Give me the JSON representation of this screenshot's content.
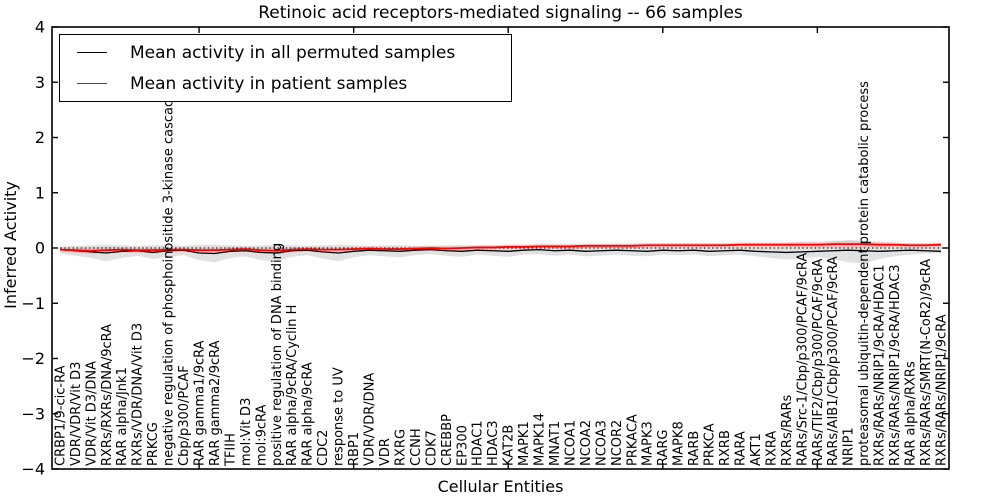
{
  "chart_data": {
    "type": "line",
    "title": "Retinoic acid receptors-mediated signaling -- 66 samples",
    "xlabel": "Cellular Entities",
    "ylabel": "Inferred Activity",
    "ylim": [
      -4,
      4
    ],
    "y_tick_values": [
      4,
      3,
      2,
      1,
      0,
      -1,
      -2,
      -3,
      -4
    ],
    "y_tick_labels": [
      "4",
      "3",
      "2",
      "1",
      "0",
      "−1",
      "−2",
      "−3",
      "−4"
    ],
    "grid": false,
    "zero_line": true,
    "legend_position": "upper left",
    "categories": [
      "CRBP1/9-cic-RA",
      "VDR/VDR/Vit D3",
      "VDR/Vit D3/DNA",
      "RXRs/RXRs/DNA/9cRA",
      "RAR alpha/Jnk1",
      "RXRs/VDR/DNA/Vit D3",
      "PRKCG",
      "negative regulation of phosphoinositide 3-kinase cascade",
      "Cbp/p300/PCAF",
      "RAR gamma1/9cRA",
      "RAR gamma2/9cRA",
      "TFIIH",
      "mol:Vit D3",
      "mol:9cRA",
      "positive regulation of DNA binding",
      "RAR alpha/9cRA/Cyclin H",
      "RAR alpha/9cRA",
      "CDC2",
      "response to UV",
      "RBP1",
      "VDR/VDR/DNA",
      "VDR",
      "RXRG",
      "CCNH",
      "CDK7",
      "CREBBP",
      "EP300",
      "HDAC1",
      "HDAC3",
      "KAT2B",
      "MAPK1",
      "MAPK14",
      "MNAT1",
      "NCOA1",
      "NCOA2",
      "NCOA3",
      "NCOR2",
      "PRKACA",
      "MAPK3",
      "RARG",
      "MAPK8",
      "RARB",
      "PRKCA",
      "RXRB",
      "RARA",
      "AKT1",
      "RXRA",
      "RXRs/RARs",
      "RARs/Src-1/Cbp/p300/PCAF/9cRA",
      "RARs/TIF2/Cbp/p300/PCAF/9cRA",
      "RARs/AIB1/Cbp/p300/PCAF/9cRA",
      "NRIP1",
      "proteasomal ubiquitin-dependent protein catabolic process",
      "RXRs/RARs/NRIP1/9cRA/HDAC1",
      "RXRs/RARs/NRIP1/9cRA/HDAC3",
      "RAR alpha/RXRs",
      "RXRs/RARs/SMRT(N-CoR2)/9cRA",
      "RXRs/RARs/NRIP1/9cRA"
    ],
    "series": [
      {
        "name": "Mean activity in all permuted samples",
        "color": "#000000",
        "band_color": "#d9d9d9",
        "band_opacity": 0.8,
        "values": [
          -0.03,
          -0.05,
          -0.07,
          -0.09,
          -0.06,
          -0.05,
          -0.08,
          -0.05,
          -0.04,
          -0.09,
          -0.1,
          -0.06,
          -0.05,
          -0.08,
          -0.09,
          -0.05,
          -0.04,
          -0.07,
          -0.09,
          -0.06,
          -0.04,
          -0.05,
          -0.06,
          -0.04,
          -0.03,
          -0.05,
          -0.06,
          -0.04,
          -0.05,
          -0.06,
          -0.04,
          -0.03,
          -0.05,
          -0.04,
          -0.06,
          -0.05,
          -0.04,
          -0.05,
          -0.06,
          -0.04,
          -0.05,
          -0.04,
          -0.06,
          -0.05,
          -0.04,
          -0.06,
          -0.07,
          -0.08,
          -0.07,
          -0.06,
          -0.05,
          -0.04,
          -0.05,
          -0.06,
          -0.05,
          -0.04,
          -0.05,
          -0.06
        ],
        "band_high": [
          0.02,
          0.04,
          0.05,
          0.06,
          0.05,
          0.04,
          0.05,
          0.05,
          0.04,
          0.06,
          0.06,
          0.05,
          0.04,
          0.05,
          0.06,
          0.05,
          0.04,
          0.05,
          0.06,
          0.05,
          0.04,
          0.05,
          0.05,
          0.04,
          0.04,
          0.05,
          0.05,
          0.04,
          0.05,
          0.05,
          0.04,
          0.04,
          0.05,
          0.04,
          0.05,
          0.05,
          0.04,
          0.05,
          0.05,
          0.04,
          0.05,
          0.04,
          0.05,
          0.05,
          0.04,
          0.05,
          0.06,
          0.06,
          0.05,
          0.06,
          0.1,
          0.15,
          0.12,
          0.07,
          0.05,
          0.04,
          0.03,
          0.02
        ],
        "band_low": [
          -0.1,
          -0.14,
          -0.18,
          -0.24,
          -0.18,
          -0.14,
          -0.2,
          -0.16,
          -0.13,
          -0.22,
          -0.26,
          -0.18,
          -0.15,
          -0.22,
          -0.24,
          -0.16,
          -0.13,
          -0.19,
          -0.24,
          -0.17,
          -0.13,
          -0.15,
          -0.17,
          -0.13,
          -0.11,
          -0.14,
          -0.16,
          -0.12,
          -0.14,
          -0.16,
          -0.12,
          -0.11,
          -0.14,
          -0.12,
          -0.15,
          -0.14,
          -0.12,
          -0.14,
          -0.15,
          -0.12,
          -0.13,
          -0.12,
          -0.15,
          -0.13,
          -0.12,
          -0.15,
          -0.18,
          -0.21,
          -0.18,
          -0.16,
          -0.2,
          -0.26,
          -0.28,
          -0.2,
          -0.15,
          -0.12,
          -0.1,
          -0.09
        ]
      },
      {
        "name": "Mean activity in patient samples",
        "color": "#ff0000",
        "band_color": "#f4b0b0",
        "band_opacity": 0.65,
        "values": [
          -0.03,
          -0.04,
          -0.05,
          -0.04,
          -0.03,
          -0.04,
          -0.04,
          -0.03,
          -0.03,
          -0.04,
          -0.04,
          -0.03,
          -0.02,
          -0.04,
          -0.05,
          -0.03,
          -0.02,
          -0.03,
          -0.03,
          -0.02,
          -0.01,
          -0.02,
          -0.02,
          -0.01,
          0.0,
          -0.01,
          0.0,
          0.01,
          0.01,
          0.02,
          0.02,
          0.03,
          0.03,
          0.03,
          0.04,
          0.04,
          0.04,
          0.04,
          0.05,
          0.05,
          0.05,
          0.05,
          0.05,
          0.05,
          0.06,
          0.06,
          0.06,
          0.06,
          0.06,
          0.06,
          0.07,
          0.07,
          0.07,
          0.06,
          0.06,
          0.05,
          0.05,
          0.06
        ],
        "band_high": [
          0.01,
          0.0,
          0.01,
          0.02,
          0.01,
          0.0,
          0.0,
          0.01,
          0.01,
          0.0,
          0.0,
          0.01,
          0.02,
          0.0,
          0.01,
          0.01,
          0.02,
          0.01,
          0.01,
          0.02,
          0.03,
          0.02,
          0.02,
          0.03,
          0.04,
          0.03,
          0.04,
          0.05,
          0.05,
          0.06,
          0.06,
          0.07,
          0.07,
          0.07,
          0.08,
          0.08,
          0.08,
          0.08,
          0.09,
          0.09,
          0.09,
          0.09,
          0.09,
          0.09,
          0.1,
          0.1,
          0.1,
          0.1,
          0.11,
          0.11,
          0.13,
          0.13,
          0.13,
          0.11,
          0.1,
          0.09,
          0.09,
          0.1
        ],
        "band_low": [
          -0.07,
          -0.08,
          -0.11,
          -0.1,
          -0.07,
          -0.08,
          -0.08,
          -0.07,
          -0.07,
          -0.08,
          -0.08,
          -0.07,
          -0.06,
          -0.08,
          -0.11,
          -0.07,
          -0.06,
          -0.07,
          -0.07,
          -0.06,
          -0.05,
          -0.06,
          -0.06,
          -0.05,
          -0.04,
          -0.05,
          -0.04,
          -0.03,
          -0.03,
          -0.02,
          -0.02,
          -0.01,
          -0.01,
          -0.01,
          0.0,
          0.0,
          0.0,
          0.0,
          0.01,
          0.01,
          0.01,
          0.01,
          0.01,
          0.01,
          0.02,
          0.02,
          0.02,
          0.02,
          0.01,
          0.01,
          0.01,
          0.01,
          0.01,
          0.01,
          0.02,
          0.01,
          0.01,
          0.02
        ]
      }
    ]
  },
  "colors": {
    "frame": "#000000",
    "background": "#ffffff",
    "zero_line": "#000000"
  }
}
